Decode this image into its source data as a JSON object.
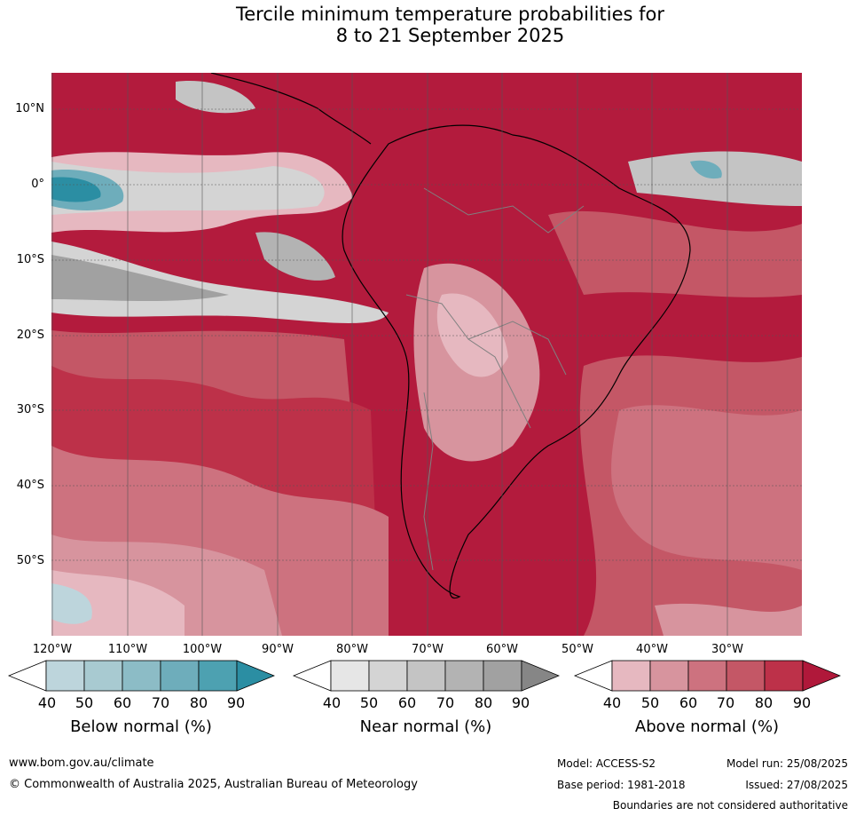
{
  "title": {
    "line1": "Tercile minimum temperature probabilities for",
    "line2": "8 to 21 September 2025"
  },
  "map": {
    "lat_labels": [
      "10°N",
      "0°",
      "10°S",
      "20°S",
      "30°S",
      "40°S",
      "50°S"
    ],
    "lon_labels": [
      "120°W",
      "110°W",
      "100°W",
      "90°W",
      "80°W",
      "70°W",
      "60°W",
      "50°W",
      "40°W",
      "30°W"
    ],
    "colors": {
      "above_dominant": "#b31b3d",
      "land_outline": "#000000",
      "border": "#808080",
      "gridline": "#555555"
    }
  },
  "legends": [
    {
      "title": "Below normal (%)",
      "ticks": [
        "40",
        "50",
        "60",
        "70",
        "80",
        "90"
      ],
      "colors": [
        "#bdd5dc",
        "#a8cad1",
        "#8cbcc6",
        "#6eadbb",
        "#4da1b1",
        "#2b8ea3"
      ]
    },
    {
      "title": "Near normal (%)",
      "ticks": [
        "40",
        "50",
        "60",
        "70",
        "80",
        "90"
      ],
      "colors": [
        "#e6e6e6",
        "#d4d4d4",
        "#c4c4c4",
        "#b3b3b3",
        "#a1a1a1",
        "#868686"
      ]
    },
    {
      "title": "Above normal (%)",
      "ticks": [
        "40",
        "50",
        "60",
        "70",
        "80",
        "90"
      ],
      "colors": [
        "#e6b8c0",
        "#d7949e",
        "#cd727f",
        "#c45766",
        "#bd3149",
        "#b0183a"
      ]
    }
  ],
  "footer": {
    "website": "www.bom.gov.au/climate",
    "copyright": "© Commonwealth of Australia 2025, Australian Bureau of Meteorology",
    "model": "Model: ACCESS-S2",
    "base_period": "Base period: 1981-2018",
    "model_run": "Model run: 25/08/2025",
    "issued": "Issued: 27/08/2025",
    "disclaimer": "Boundaries are not considered authoritative"
  }
}
